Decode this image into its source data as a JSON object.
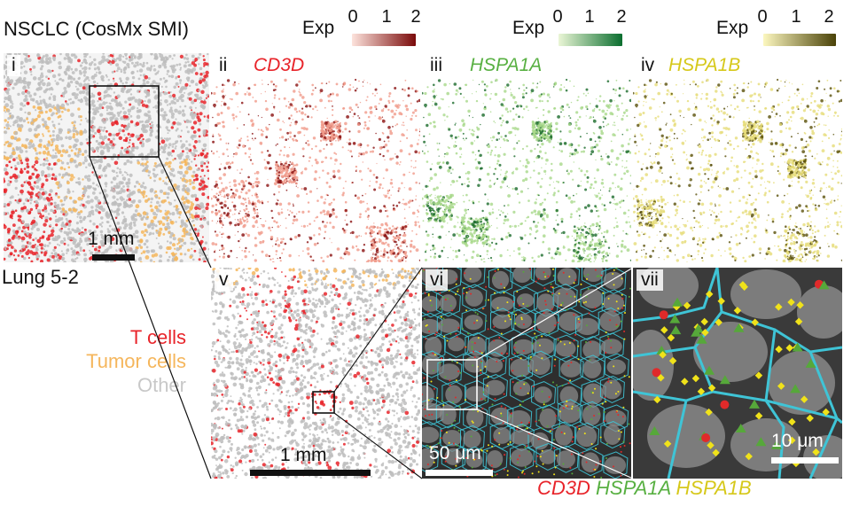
{
  "title": "NSCLC (CosMx SMI)",
  "sample": "Lung 5-2",
  "legend": [
    {
      "label": "T cells",
      "color": "#e8242a"
    },
    {
      "label": "Tumor cells",
      "color": "#f5b65c"
    },
    {
      "label": "Other",
      "color": "#c8c8c8"
    }
  ],
  "colorbars": [
    {
      "label": "Exp",
      "ticks": [
        "0",
        "1",
        "2"
      ],
      "from": "#fde3dc",
      "to": "#7a0a0a"
    },
    {
      "label": "Exp",
      "ticks": [
        "0",
        "1",
        "2"
      ],
      "from": "#eaf6d6",
      "to": "#0b6e2f"
    },
    {
      "label": "Exp",
      "ticks": [
        "0",
        "1",
        "2"
      ],
      "from": "#fcf7bf",
      "to": "#4a4208"
    }
  ],
  "panels": {
    "i": {
      "label": "i",
      "scale": "1 mm"
    },
    "ii": {
      "label": "ii",
      "gene": "CD3D",
      "gene_color": "#e8242a"
    },
    "iii": {
      "label": "iii",
      "gene": "HSPA1A",
      "gene_color": "#58b042"
    },
    "iv": {
      "label": "iv",
      "gene": "HSPA1B",
      "gene_color": "#d6c81a"
    },
    "v": {
      "label": "v",
      "scale": "1 mm"
    },
    "vi": {
      "label": "vi",
      "scale": "50 μm"
    },
    "vii": {
      "label": "vii",
      "scale": "10 μm"
    }
  },
  "bottom_genes": [
    {
      "text": "CD3D",
      "color": "#e8242a"
    },
    {
      "text": "HSPA1A",
      "color": "#58b042"
    },
    {
      "text": "HSPA1B",
      "color": "#d6c81a"
    }
  ],
  "marker_colors": {
    "t_cell": "#e8242a",
    "tumor": "#f5b65c",
    "other": "#bdbdbd",
    "cd3d": "#e02a2a",
    "hspa1a": "#56a83a",
    "hspa1b": "#f0e21a",
    "boundary": "#3fc4d6"
  }
}
